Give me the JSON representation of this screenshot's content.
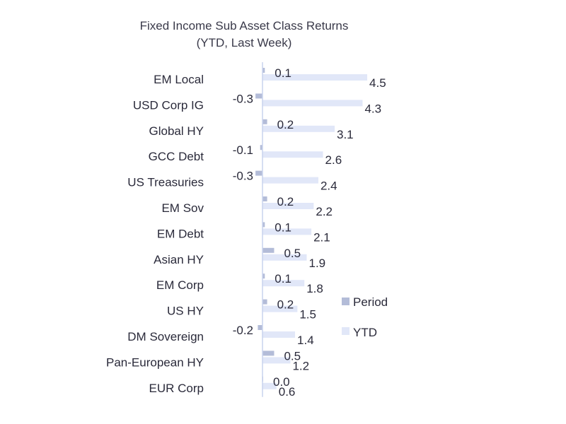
{
  "chart_data": {
    "type": "bar",
    "orientation": "horizontal",
    "title": "Fixed Income Sub Asset Class Returns",
    "subtitle": "(YTD, Last Week)",
    "categories": [
      "EM Local",
      "USD Corp IG",
      "Global HY",
      "GCC Debt",
      "US Treasuries",
      "EM Sov",
      "EM Debt",
      "Asian HY",
      "EM Corp",
      "US HY",
      "DM Sovereign",
      "Pan-European HY",
      "EUR Corp"
    ],
    "series": [
      {
        "name": "Period",
        "values": [
          0.1,
          -0.3,
          0.2,
          -0.1,
          -0.3,
          0.2,
          0.1,
          0.5,
          0.1,
          0.2,
          -0.2,
          0.5,
          0.0
        ],
        "color": "#b3bcd8"
      },
      {
        "name": "YTD",
        "values": [
          4.5,
          4.3,
          3.1,
          2.6,
          2.4,
          2.2,
          2.1,
          1.9,
          1.8,
          1.5,
          1.4,
          1.2,
          0.6
        ],
        "color": "#e1e7f8"
      }
    ],
    "value_labels": {
      "Period": [
        "0.1",
        "-0.3",
        "0.2",
        "-0.1",
        "-0.3",
        "0.2",
        "0.1",
        "0.5",
        "0.1",
        "0.2",
        "-0.2",
        "0.5",
        "0.0"
      ],
      "YTD": [
        "4.5",
        "4.3",
        "3.1",
        "2.6",
        "2.4",
        "2.2",
        "2.1",
        "1.9",
        "1.8",
        "1.5",
        "1.4",
        "1.2",
        "0.6"
      ]
    },
    "legend_position": "right",
    "grid": false,
    "axis_line_color": "#c9d4ee"
  }
}
